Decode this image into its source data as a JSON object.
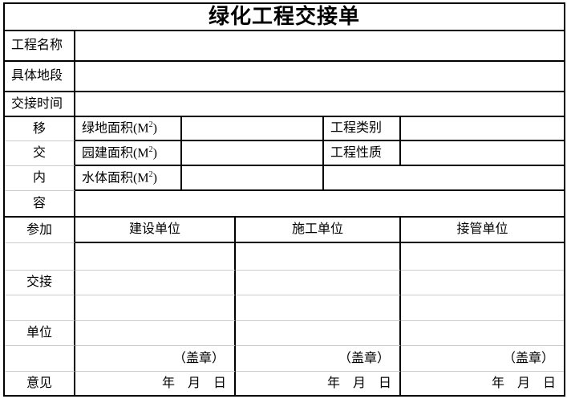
{
  "title": "绿化工程交接单",
  "info_rows": [
    {
      "label": "工程名称"
    },
    {
      "label": "具体地段"
    },
    {
      "label": "交接时间"
    }
  ],
  "transfer": {
    "side_chars": [
      "移",
      "交",
      "内",
      "容"
    ],
    "rows": [
      {
        "name": "绿地面积",
        "unit": {
          "open": "(M",
          "sup": "2",
          "close": ")"
        },
        "right": "工程类别"
      },
      {
        "name": "园建面积",
        "unit": {
          "open": "(M",
          "sup": "2",
          "close": ")"
        },
        "right": "工程性质"
      },
      {
        "name": "水体面积",
        "unit": {
          "open": "(M",
          "sup": "2",
          "close": ")"
        }
      }
    ]
  },
  "units": {
    "side_labels": [
      "参加",
      "交接",
      "单位",
      "意见"
    ],
    "column_headers": [
      "建设单位",
      "施工单位",
      "接管单位"
    ],
    "seal_label": "（盖章）",
    "date_label": "年　月　日"
  },
  "colors": {
    "border": "#000000",
    "gridline": "#cccccc",
    "background": "#ffffff",
    "text": "#000000"
  }
}
